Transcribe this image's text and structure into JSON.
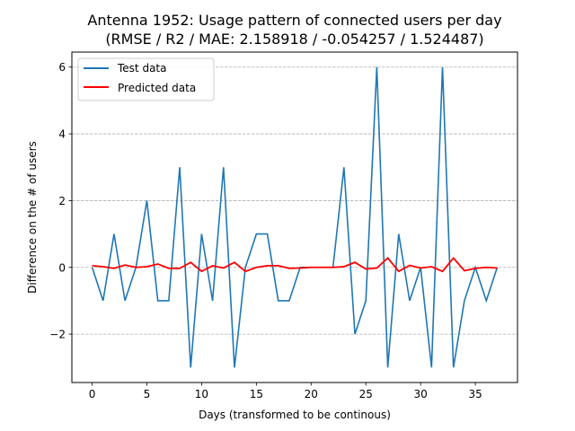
{
  "chart_data": {
    "type": "line",
    "title": "Antenna 1952: Usage pattern of connected users per day",
    "subtitle": "(RMSE / R2 / MAE: 2.158918 / -0.054257 / 1.524487)",
    "xlabel": "Days (transformed to be continous)",
    "ylabel": "Difference on the # of users",
    "xlim": [
      -1.85,
      38.85
    ],
    "ylim": [
      -3.45,
      6.45
    ],
    "xticks": [
      0,
      5,
      10,
      15,
      20,
      25,
      30,
      35
    ],
    "yticks": [
      -2,
      0,
      2,
      4,
      6
    ],
    "grid": "y-dashed",
    "legend_position": "top-left",
    "x": [
      0,
      1,
      2,
      3,
      4,
      5,
      6,
      7,
      8,
      9,
      10,
      11,
      12,
      13,
      14,
      15,
      16,
      17,
      18,
      19,
      20,
      21,
      22,
      23,
      24,
      25,
      26,
      27,
      28,
      29,
      30,
      31,
      32,
      33,
      34,
      35,
      36,
      37
    ],
    "series": [
      {
        "name": "Test data",
        "color": "#1f77b4",
        "values": [
          0,
          -1,
          1,
          -1,
          0,
          2,
          -1,
          -1,
          3,
          -3,
          1,
          -1,
          3,
          -3,
          0,
          1,
          1,
          -1,
          -1,
          0,
          0,
          0,
          0,
          3,
          -2,
          -1,
          6,
          -3,
          1,
          -1,
          0,
          -3,
          6,
          -3,
          -1,
          0,
          -1,
          0
        ]
      },
      {
        "name": "Predicted data",
        "color": "#ff0000",
        "values": [
          0.05,
          0.02,
          -0.03,
          0.07,
          0.0,
          0.02,
          0.1,
          -0.03,
          -0.03,
          0.15,
          -0.12,
          0.05,
          -0.02,
          0.15,
          -0.12,
          0.0,
          0.05,
          0.05,
          -0.03,
          -0.02,
          0.0,
          0.0,
          0.0,
          0.02,
          0.15,
          -0.05,
          -0.02,
          0.28,
          -0.12,
          0.06,
          -0.02,
          0.02,
          -0.12,
          0.28,
          -0.1,
          -0.03,
          0.0,
          -0.02
        ]
      }
    ]
  }
}
